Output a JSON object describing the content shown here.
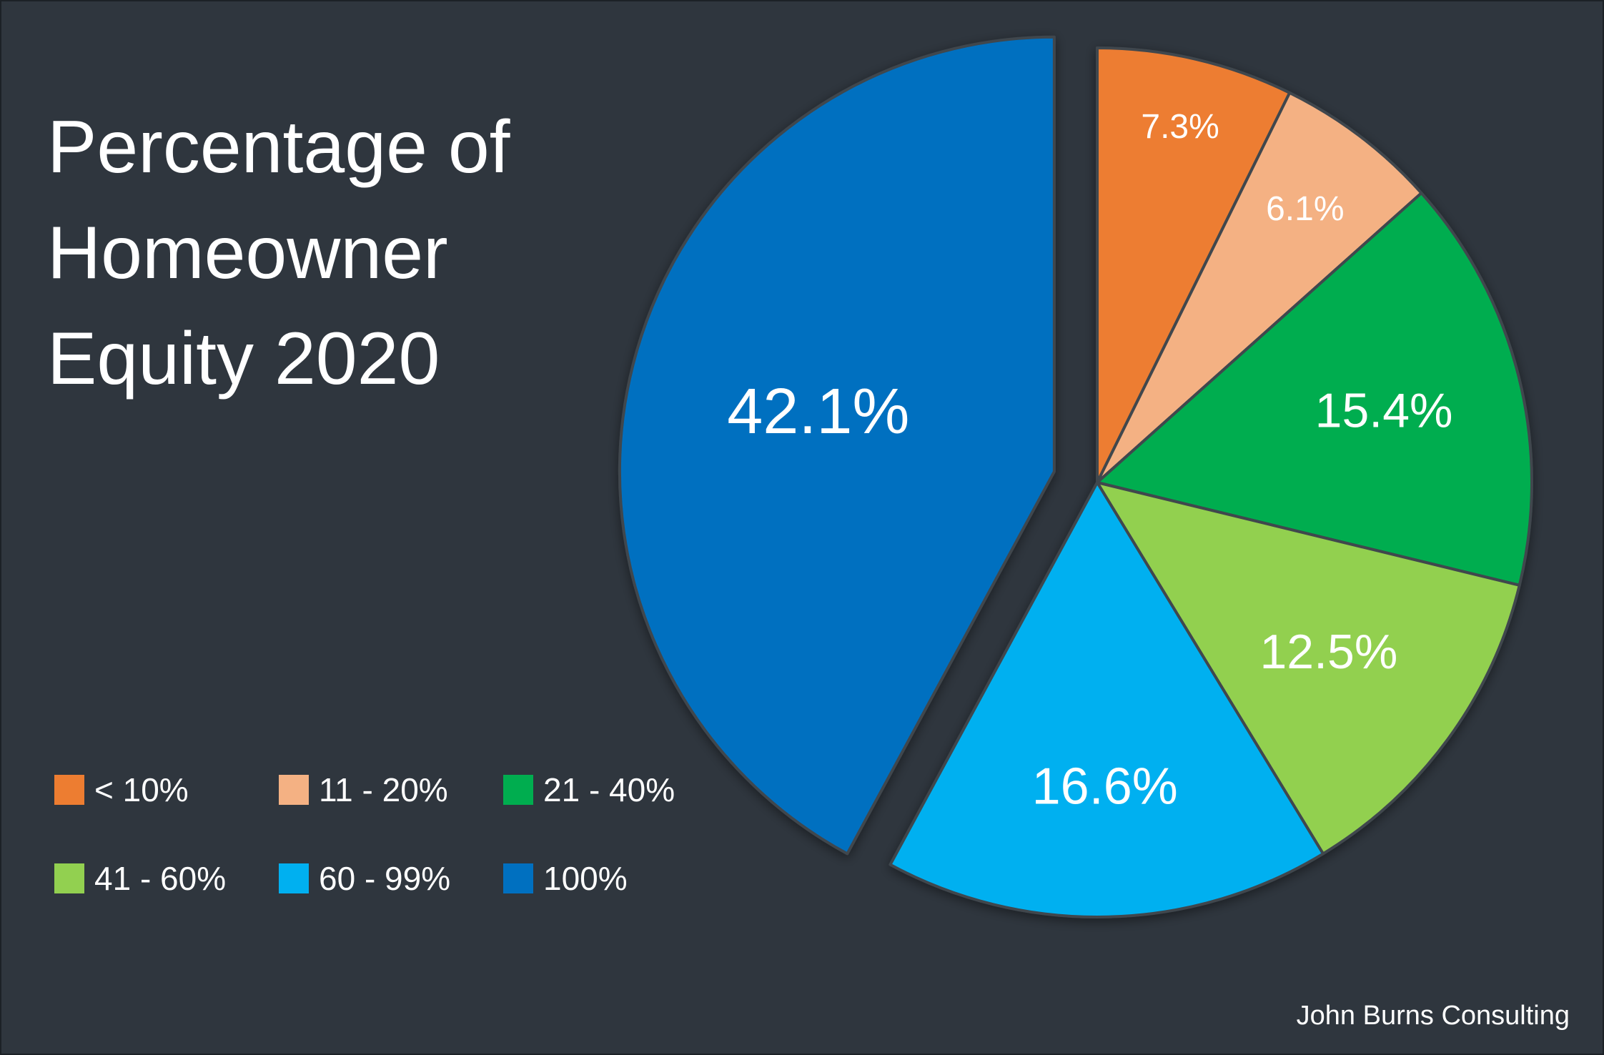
{
  "chart_data": {
    "type": "pie",
    "title_lines": [
      "Percentage of",
      "Homeowner",
      "Equity 2020"
    ],
    "categories": [
      "< 10%",
      "11 - 20%",
      "21 - 40%",
      "41 - 60%",
      "60 - 99%",
      "100%"
    ],
    "values": [
      7.3,
      6.1,
      15.4,
      12.5,
      16.6,
      42.1
    ],
    "data_labels": [
      "7.3%",
      "6.1%",
      "15.4%",
      "12.5%",
      "16.6%",
      "42.1%"
    ],
    "colors": [
      "#ed7d31",
      "#f4b183",
      "#00ad4f",
      "#92d050",
      "#00b0f0",
      "#0070c0"
    ],
    "exploded": [
      "100%"
    ],
    "legend_position": "bottom-left",
    "start_angle": "top",
    "direction": "clockwise"
  },
  "source": "John Burns Consulting"
}
